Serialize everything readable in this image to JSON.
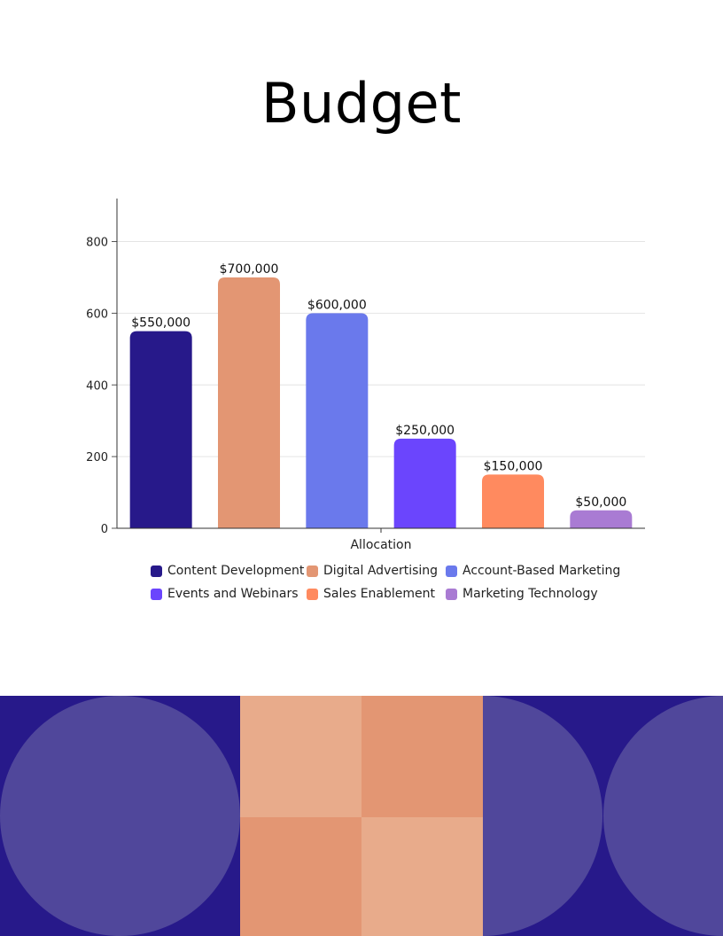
{
  "page": {
    "title": "Budget"
  },
  "chart_data": {
    "type": "bar",
    "categories": [
      "Content Development",
      "Digital Advertising",
      "Account-Based Marketing",
      "Events and Webinars",
      "Sales Enablement",
      "Marketing Technology"
    ],
    "values": [
      550,
      700,
      600,
      250,
      150,
      50
    ],
    "data_labels": [
      "$550,000",
      "$700,000",
      "$600,000",
      "$250,000",
      "$150,000",
      "$50,000"
    ],
    "colors": [
      "#27198A",
      "#E39673",
      "#6A79EC",
      "#6B45FD",
      "#FF8A5F",
      "#A97BD3"
    ],
    "xlabel": "Allocation",
    "ylabel": "",
    "ylim": [
      0,
      920
    ],
    "yticks": [
      0,
      200,
      400,
      600,
      800
    ],
    "grid": true,
    "legend_position": "bottom"
  },
  "decor": {
    "navy": "#27198A",
    "circle_purple": "#50479B",
    "peach_light": "#E8AB8B",
    "peach_dark": "#E39673"
  }
}
